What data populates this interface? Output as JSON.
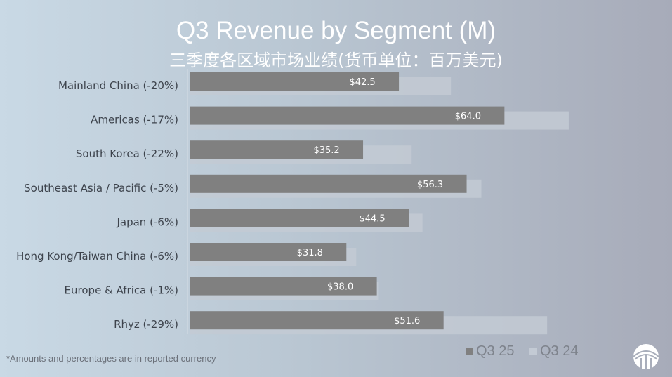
{
  "chart_data": {
    "type": "bar",
    "orientation": "horizontal",
    "title": "Q3 Revenue by Segment (M)",
    "subtitle": "三季度各区域市场业绩(货币单位：百万美元)",
    "categories": [
      "Mainland China (-20%)",
      "Americas (-17%)",
      "South Korea (-22%)",
      "Southeast Asia / Pacific (-5%)",
      "Japan (-6%)",
      "Hong Kong/Taiwan China (-6%)",
      "Europe & Africa (-1%)",
      "Rhyz (-29%)"
    ],
    "series": [
      {
        "name": "Q3 25",
        "color": "#808080",
        "values": [
          42.5,
          64.0,
          35.2,
          56.3,
          44.5,
          31.8,
          38.0,
          51.6
        ],
        "labels": [
          "$42.5",
          "$64.0",
          "$35.2",
          "$56.3",
          "$44.5",
          "$31.8",
          "$38.0",
          "$51.6"
        ]
      },
      {
        "name": "Q3 24",
        "color": "#c3cad4",
        "values": [
          53.1,
          77.1,
          45.1,
          59.3,
          47.3,
          33.8,
          38.4,
          72.7
        ]
      }
    ],
    "xlim": [
      0,
      97
    ],
    "grid": false,
    "legend": "bottom-right",
    "footnote": "*Amounts and percentages are in reported currency"
  }
}
